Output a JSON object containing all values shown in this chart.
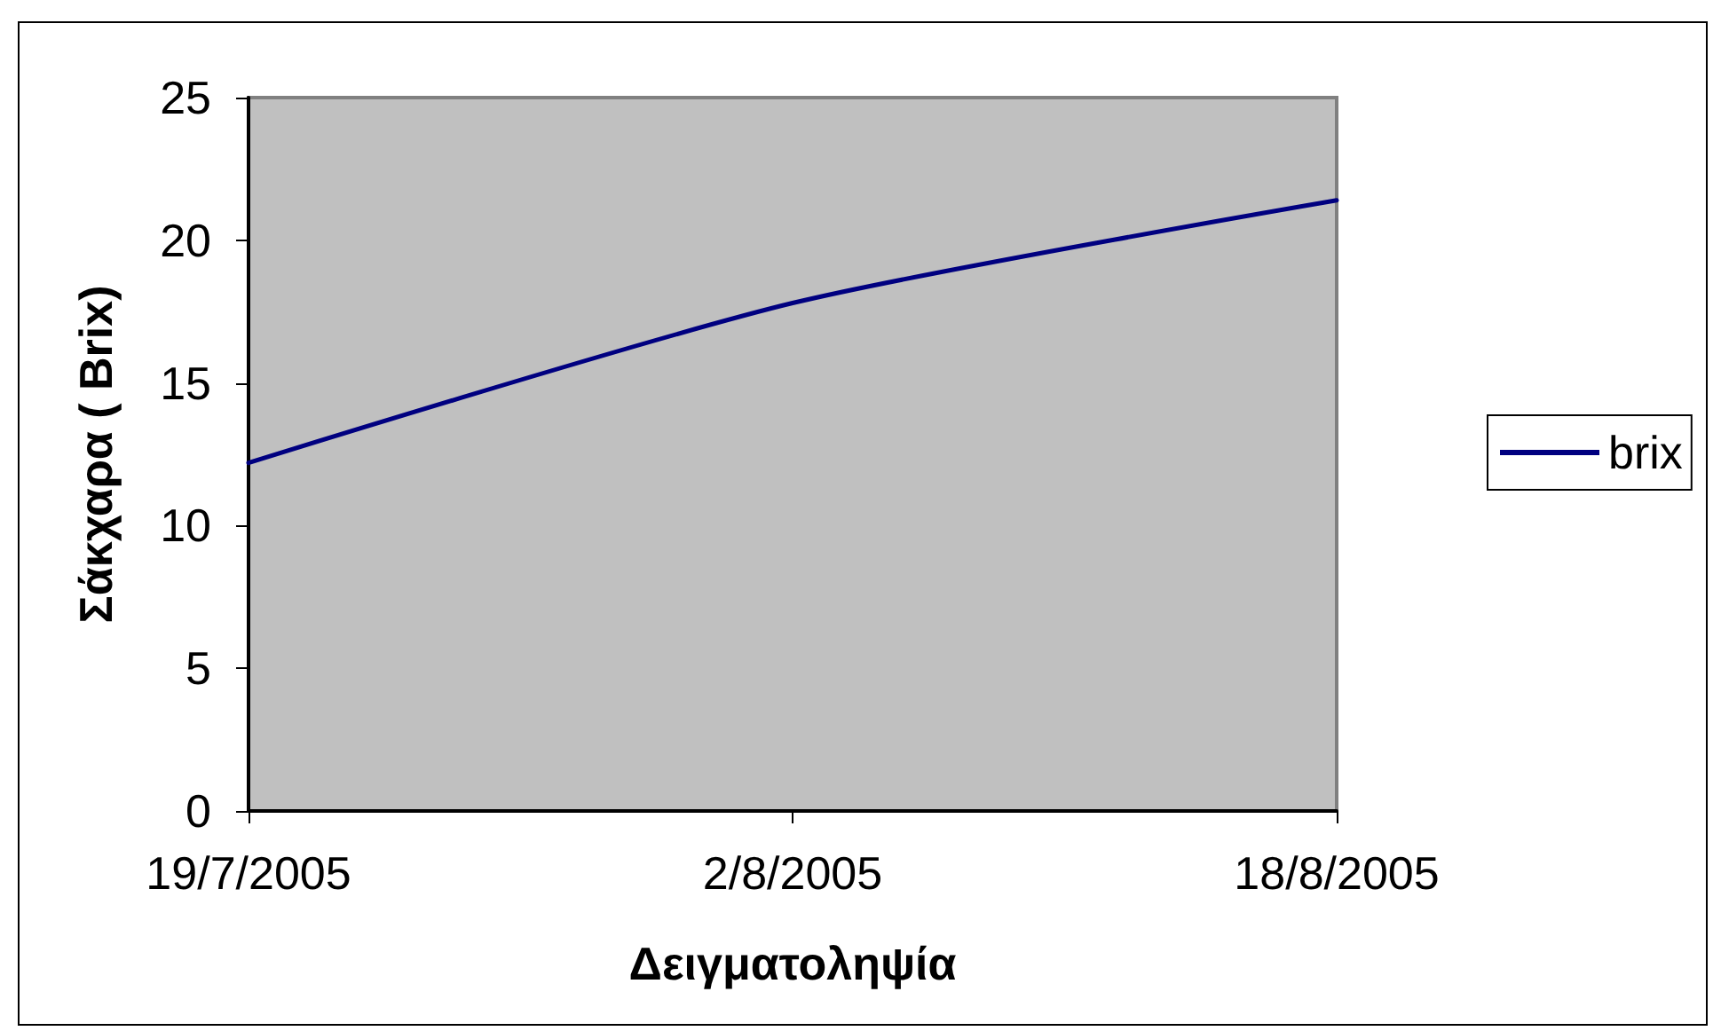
{
  "chart_data": {
    "type": "line",
    "xlabel": "Δειγματοληψία",
    "ylabel": "Σάκχαρα ( Brix)",
    "categories": [
      "19/7/2005",
      "2/8/2005",
      "18/8/2005"
    ],
    "series": [
      {
        "name": "brix",
        "color": "#000080",
        "values": [
          12.2,
          17.8,
          21.4
        ]
      }
    ],
    "ylim": [
      0,
      25
    ],
    "yticks": [
      0,
      5,
      10,
      15,
      20,
      25
    ],
    "grid": false,
    "legend": "right",
    "marker": "none",
    "line_style": "solid"
  }
}
